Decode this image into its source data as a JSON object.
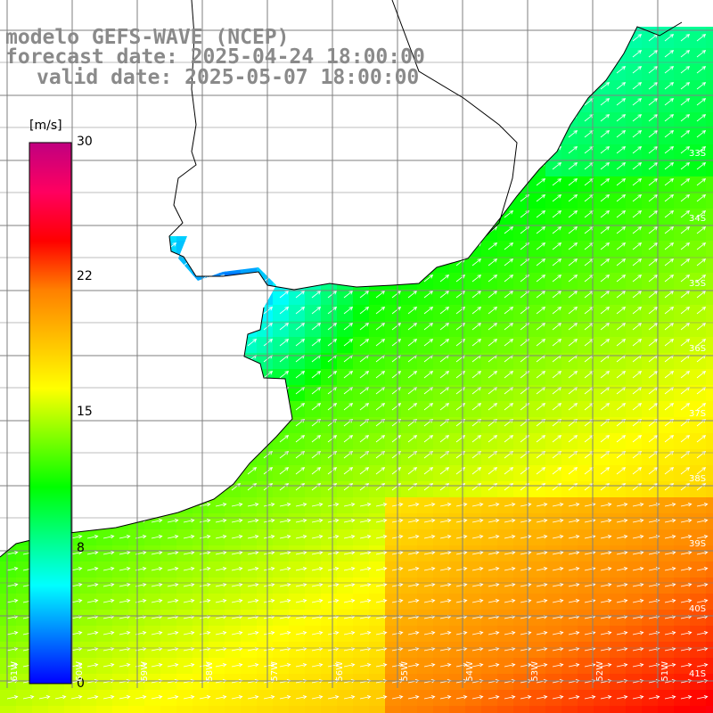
{
  "header": {
    "line1": "modelo GEFS-WAVE (NCEP)",
    "line2": "forecast date: 2025-04-24 18:00:00",
    "line3": "valid date: 2025-05-07 18:00:00"
  },
  "colorbar": {
    "unit": "[m/s]",
    "ticks": [
      "30",
      "22",
      "15",
      "8",
      "0"
    ],
    "stops": [
      "#0000ff",
      "#0080ff",
      "#00ffff",
      "#00ff80",
      "#00ff00",
      "#80ff00",
      "#ffff00",
      "#ffc000",
      "#ff8000",
      "#ff0000",
      "#ff0060",
      "#c00080"
    ]
  },
  "graticule": {
    "lat_labels": [
      "33S",
      "34S",
      "35S",
      "36S",
      "37S",
      "38S",
      "39S",
      "40S",
      "41S"
    ],
    "lon_labels": [
      "61W",
      "60W",
      "59W",
      "58W",
      "57W",
      "56W",
      "55W",
      "54W",
      "53W",
      "52W",
      "51W"
    ]
  },
  "field": {
    "arrow_color": "#ffffff",
    "land_color": "#ffffff",
    "coast_color": "#000000",
    "grid_color": "#7f7f7f"
  }
}
